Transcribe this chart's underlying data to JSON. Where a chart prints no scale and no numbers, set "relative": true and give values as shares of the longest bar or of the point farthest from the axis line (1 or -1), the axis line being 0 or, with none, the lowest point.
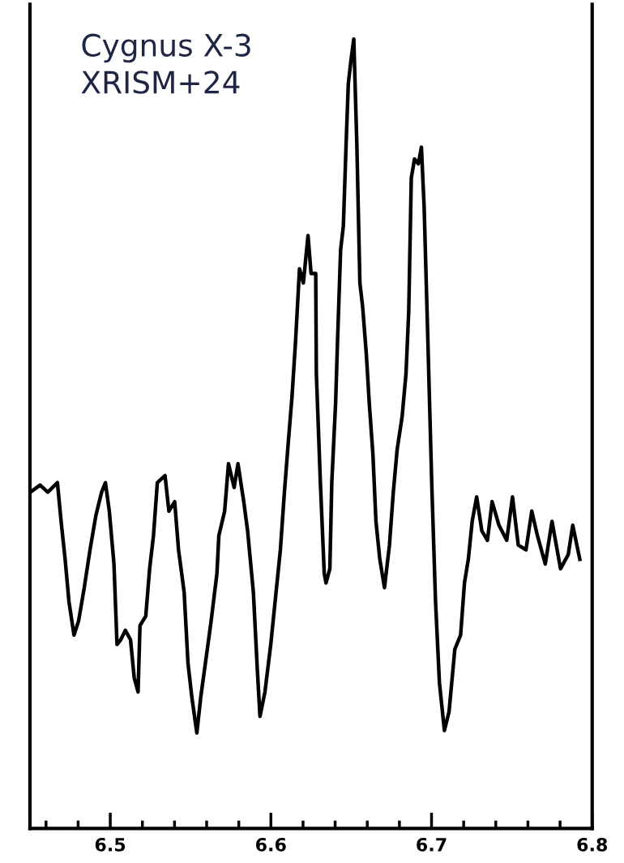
{
  "chart_data": {
    "type": "line",
    "relative": true,
    "marker": "none",
    "line_style": "solid",
    "grid": false,
    "annotations": [
      "Cygnus X-3",
      "XRISM+24"
    ],
    "xlim": [
      6.45,
      6.8
    ],
    "xticks": [
      6.5,
      6.6,
      6.7,
      6.8,
      {
        "value": 6.46,
        "label": null
      },
      {
        "value": 6.48,
        "label": null
      },
      {
        "value": 6.52,
        "label": null
      },
      {
        "value": 6.54,
        "label": null
      },
      {
        "value": 6.56,
        "label": null
      },
      {
        "value": 6.58,
        "label": null
      },
      {
        "value": 6.62,
        "label": null
      },
      {
        "value": 6.64,
        "label": null
      },
      {
        "value": 6.66,
        "label": null
      },
      {
        "value": 6.68,
        "label": null
      },
      {
        "value": 6.72,
        "label": null
      },
      {
        "value": 6.74,
        "label": null
      },
      {
        "value": 6.76,
        "label": null
      },
      {
        "value": 6.78,
        "label": null
      }
    ],
    "series": [
      {
        "color": "#000000",
        "x": [
          6.4503,
          6.4563,
          6.4611,
          6.4671,
          6.4694,
          6.4719,
          6.4743,
          6.4774,
          6.4803,
          6.4838,
          6.4874,
          6.491,
          6.4946,
          6.497,
          6.4994,
          6.5023,
          6.5042,
          6.5065,
          6.5094,
          6.5126,
          6.5149,
          6.5173,
          6.5185,
          6.5221,
          6.5245,
          6.5269,
          6.5293,
          6.5341,
          6.5365,
          6.5401,
          6.5425,
          6.546,
          6.5484,
          6.5508,
          6.5539,
          6.5563,
          6.5592,
          6.5628,
          6.5664,
          6.5676,
          6.5712,
          6.5736,
          6.5771,
          6.5795,
          6.5831,
          6.5855,
          6.5891,
          6.5915,
          6.5932,
          6.5963,
          6.5999,
          6.6035,
          6.6059,
          6.6082,
          6.6107,
          6.6131,
          6.6154,
          6.6178,
          6.6202,
          6.6231,
          6.625,
          6.6279,
          6.6283,
          6.6308,
          6.6332,
          6.6343,
          6.6367,
          6.6379,
          6.6403,
          6.6415,
          6.6434,
          6.6451,
          6.6468,
          6.6482,
          6.6499,
          6.6516,
          6.6535,
          6.6554,
          6.6571,
          6.6594,
          6.6612,
          6.6635,
          6.6654,
          6.6678,
          6.6707,
          6.6738,
          6.6762,
          6.6786,
          6.6817,
          6.6841,
          6.6858,
          6.6874,
          6.6894,
          6.6918,
          6.6937,
          6.6954,
          6.6977,
          6.7002,
          6.7025,
          6.7049,
          6.708,
          6.7109,
          6.7145,
          6.7181,
          6.7205,
          6.7229,
          6.7253,
          6.7281,
          6.7313,
          6.7348,
          6.7377,
          6.742,
          6.7468,
          6.7504,
          6.754,
          6.7588,
          6.7624,
          6.7659,
          6.7708,
          6.775,
          6.7803,
          6.7851,
          6.7879,
          6.7923
        ],
        "values": [
          0.426,
          0.435,
          0.426,
          0.438,
          0.389,
          0.341,
          0.287,
          0.245,
          0.263,
          0.305,
          0.353,
          0.396,
          0.426,
          0.438,
          0.402,
          0.335,
          0.233,
          0.239,
          0.251,
          0.239,
          0.191,
          0.173,
          0.257,
          0.269,
          0.329,
          0.371,
          0.438,
          0.447,
          0.402,
          0.414,
          0.353,
          0.299,
          0.209,
          0.166,
          0.121,
          0.166,
          0.209,
          0.263,
          0.323,
          0.371,
          0.402,
          0.462,
          0.432,
          0.462,
          0.414,
          0.377,
          0.299,
          0.203,
          0.142,
          0.173,
          0.233,
          0.305,
          0.353,
          0.42,
          0.486,
          0.546,
          0.619,
          0.709,
          0.691,
          0.751,
          0.703,
          0.703,
          0.576,
          0.438,
          0.323,
          0.311,
          0.329,
          0.438,
          0.54,
          0.619,
          0.733,
          0.763,
          0.866,
          0.944,
          0.974,
          1.0,
          0.866,
          0.691,
          0.661,
          0.601,
          0.54,
          0.474,
          0.389,
          0.341,
          0.305,
          0.359,
          0.426,
          0.48,
          0.522,
          0.576,
          0.655,
          0.824,
          0.848,
          0.842,
          0.863,
          0.787,
          0.619,
          0.432,
          0.287,
          0.185,
          0.124,
          0.148,
          0.227,
          0.245,
          0.311,
          0.341,
          0.389,
          0.42,
          0.377,
          0.365,
          0.414,
          0.384,
          0.365,
          0.42,
          0.359,
          0.353,
          0.402,
          0.371,
          0.335,
          0.389,
          0.329,
          0.347,
          0.384,
          0.341
        ]
      }
    ]
  }
}
